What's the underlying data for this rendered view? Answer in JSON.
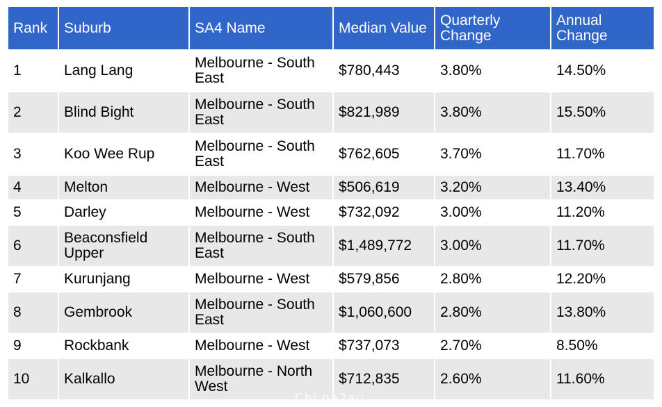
{
  "table": {
    "headers": [
      "Rank",
      "Suburb",
      "SA4 Name",
      "Median Value",
      "Quarterly Change",
      "Annual Change"
    ],
    "rows": [
      [
        "1",
        "Lang Lang",
        "Melbourne - South East",
        "$780,443",
        "3.80%",
        "14.50%"
      ],
      [
        "2",
        "Blind Bight",
        "Melbourne - South East",
        "$821,989",
        "3.80%",
        "15.50%"
      ],
      [
        "3",
        "Koo Wee Rup",
        "Melbourne - South East",
        "$762,605",
        "3.70%",
        "11.70%"
      ],
      [
        "4",
        "Melton",
        "Melbourne - West",
        "$506,619",
        "3.20%",
        "13.40%"
      ],
      [
        "5",
        "Darley",
        "Melbourne - West",
        "$732,092",
        "3.00%",
        "11.20%"
      ],
      [
        "6",
        "Beaconsfield Upper",
        "Melbourne - South East",
        "$1,489,772",
        "3.00%",
        "11.70%"
      ],
      [
        "7",
        "Kurunjang",
        "Melbourne - West",
        "$579,856",
        "2.80%",
        "12.20%"
      ],
      [
        "8",
        "Gembrook",
        "Melbourne - South East",
        "$1,060,600",
        "2.80%",
        "13.80%"
      ],
      [
        "9",
        "Rockbank",
        "Melbourne - West",
        "$737,073",
        "2.70%",
        "8.50%"
      ],
      [
        "10",
        "Kalkallo",
        "Melbourne - North West",
        "$712,835",
        "2.60%",
        "11.60%"
      ]
    ]
  },
  "watermark": "Chi na2au",
  "colors": {
    "header_bg": "#2f66c8",
    "header_text": "#ffffff",
    "row_alt": "#e8e8e8"
  }
}
